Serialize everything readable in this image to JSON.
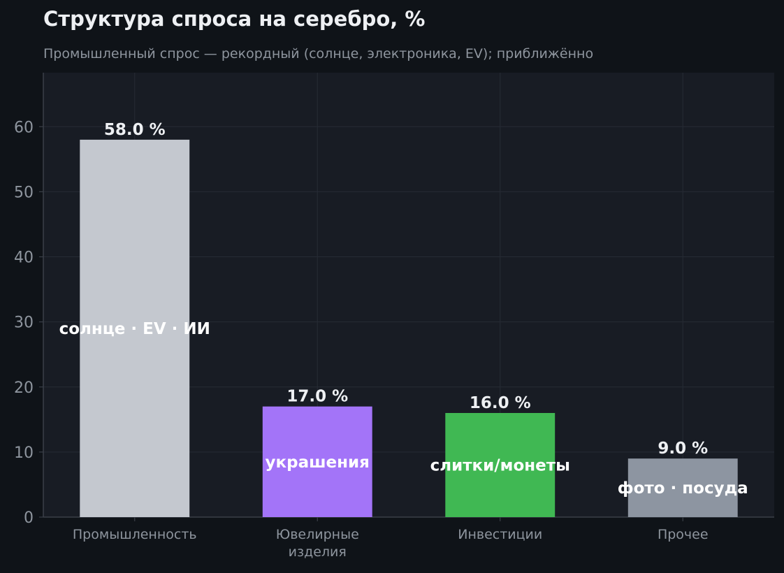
{
  "title": "Структура спроса на серебро, %",
  "subtitle": "Промышленный спрос — рекордный (солнце, электроника, EV); приближённо",
  "colors": {
    "page_background": "#0f1318",
    "plot_background": "#181c24",
    "grid": "#262b35",
    "axis": "#3a3f48",
    "tick_text": "#8e959e",
    "value_label": "#eef0f3",
    "inner_label": "#ffffff"
  },
  "chart_data": {
    "type": "bar",
    "categories": [
      "Промышленность",
      "Ювелирные изделия",
      "Инвестиции",
      "Прочее"
    ],
    "category_lines": [
      [
        "Промышленность"
      ],
      [
        "Ювелирные",
        "изделия"
      ],
      [
        "Инвестиции"
      ],
      [
        "Прочее"
      ]
    ],
    "values": [
      58.0,
      17.0,
      16.0,
      9.0
    ],
    "value_labels": [
      "58.0 %",
      "17.0 %",
      "16.0 %",
      "9.0 %"
    ],
    "inner_labels": [
      "солнце · EV · ИИ",
      "украшения",
      "слитки/монеты",
      "фото · посуда"
    ],
    "bar_colors": [
      "#c4c8cf",
      "#a374f8",
      "#40b853",
      "#8d95a1"
    ],
    "xlabel": "",
    "ylabel": "",
    "ylim": [
      0,
      68.3
    ],
    "yticks": [
      0,
      10,
      20,
      30,
      40,
      50,
      60
    ],
    "grid": true,
    "legend": "none"
  }
}
